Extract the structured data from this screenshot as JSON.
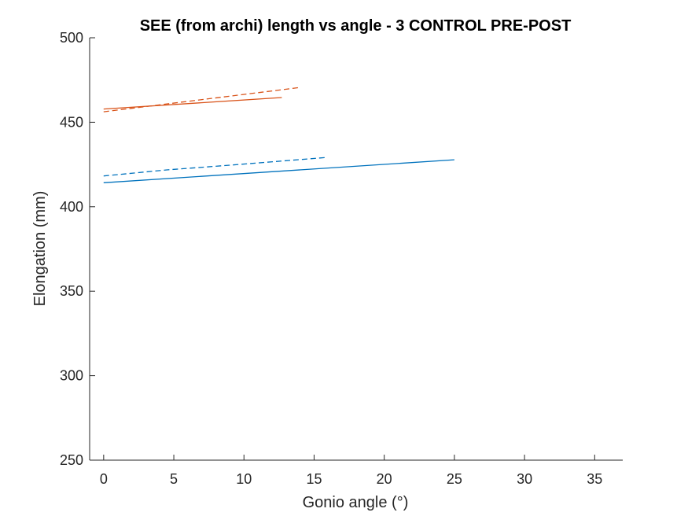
{
  "chart_data": {
    "type": "line",
    "title": "SEE (from archi) length vs angle - 3 CONTROL PRE-POST",
    "xlabel": "Gonio angle (°)",
    "ylabel": "Elongation (mm)",
    "xlim": [
      -1,
      37
    ],
    "ylim": [
      250,
      500
    ],
    "xticks": [
      0,
      5,
      10,
      15,
      20,
      25,
      30,
      35
    ],
    "yticks": [
      250,
      300,
      350,
      400,
      450,
      500
    ],
    "grid": false,
    "series": [
      {
        "color": "#0072BD",
        "dash": false,
        "x": [
          0,
          25
        ],
        "y": [
          414.2,
          427.8
        ]
      },
      {
        "color": "#0072BD",
        "dash": true,
        "x": [
          0,
          4.5,
          9,
          15.8
        ],
        "y": [
          418.2,
          421.8,
          424.6,
          429.1
        ]
      },
      {
        "color": "#D95319",
        "dash": false,
        "x": [
          0,
          12.7
        ],
        "y": [
          457.8,
          464.6
        ]
      },
      {
        "color": "#D95319",
        "dash": true,
        "x": [
          0,
          14
        ],
        "y": [
          456.2,
          470.6
        ]
      }
    ]
  }
}
